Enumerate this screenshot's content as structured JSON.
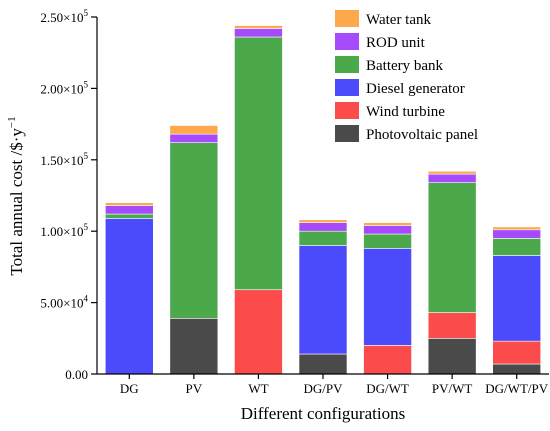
{
  "chart_data": {
    "type": "bar",
    "stacked": true,
    "title": "",
    "xlabel": "Different configurations",
    "ylabel": "Total annual cost /$·y",
    "ylabel_exponent": "−1",
    "ylim": [
      0,
      250000
    ],
    "yticks": [
      0,
      50000,
      100000,
      150000,
      200000,
      250000
    ],
    "ytick_labels": [
      {
        "mantissa": "0.00",
        "exp": ""
      },
      {
        "mantissa": "5.00×10",
        "exp": "4"
      },
      {
        "mantissa": "1.00×10",
        "exp": "5"
      },
      {
        "mantissa": "1.50×10",
        "exp": "5"
      },
      {
        "mantissa": "2.00×10",
        "exp": "5"
      },
      {
        "mantissa": "2.50×10",
        "exp": "5"
      }
    ],
    "categories": [
      "DG",
      "PV",
      "WT",
      "DG/PV",
      "DG/WT",
      "PV/WT",
      "DG/WT/PV"
    ],
    "legend_position": "top-right",
    "grid": false,
    "series": [
      {
        "name": "Photovoltaic panel",
        "color": "#4a4a4a",
        "values": [
          0,
          39000,
          0,
          14000,
          0,
          25000,
          7000
        ]
      },
      {
        "name": "Wind turbine",
        "color": "#fc4b4b",
        "values": [
          0,
          0,
          59000,
          0,
          20000,
          18000,
          16000
        ]
      },
      {
        "name": "Diesel generator",
        "color": "#4b4bfc",
        "values": [
          109000,
          0,
          0,
          76000,
          68000,
          0,
          60000
        ]
      },
      {
        "name": "Battery bank",
        "color": "#4ba84b",
        "values": [
          3000,
          123000,
          177000,
          10000,
          10000,
          91000,
          12000
        ]
      },
      {
        "name": "ROD unit",
        "color": "#a64bfc",
        "values": [
          6000,
          6000,
          6000,
          6000,
          6000,
          6000,
          6000
        ]
      },
      {
        "name": "Water tank",
        "color": "#fca84b",
        "values": [
          2000,
          6000,
          2000,
          2000,
          2000,
          2000,
          2000
        ]
      }
    ]
  }
}
